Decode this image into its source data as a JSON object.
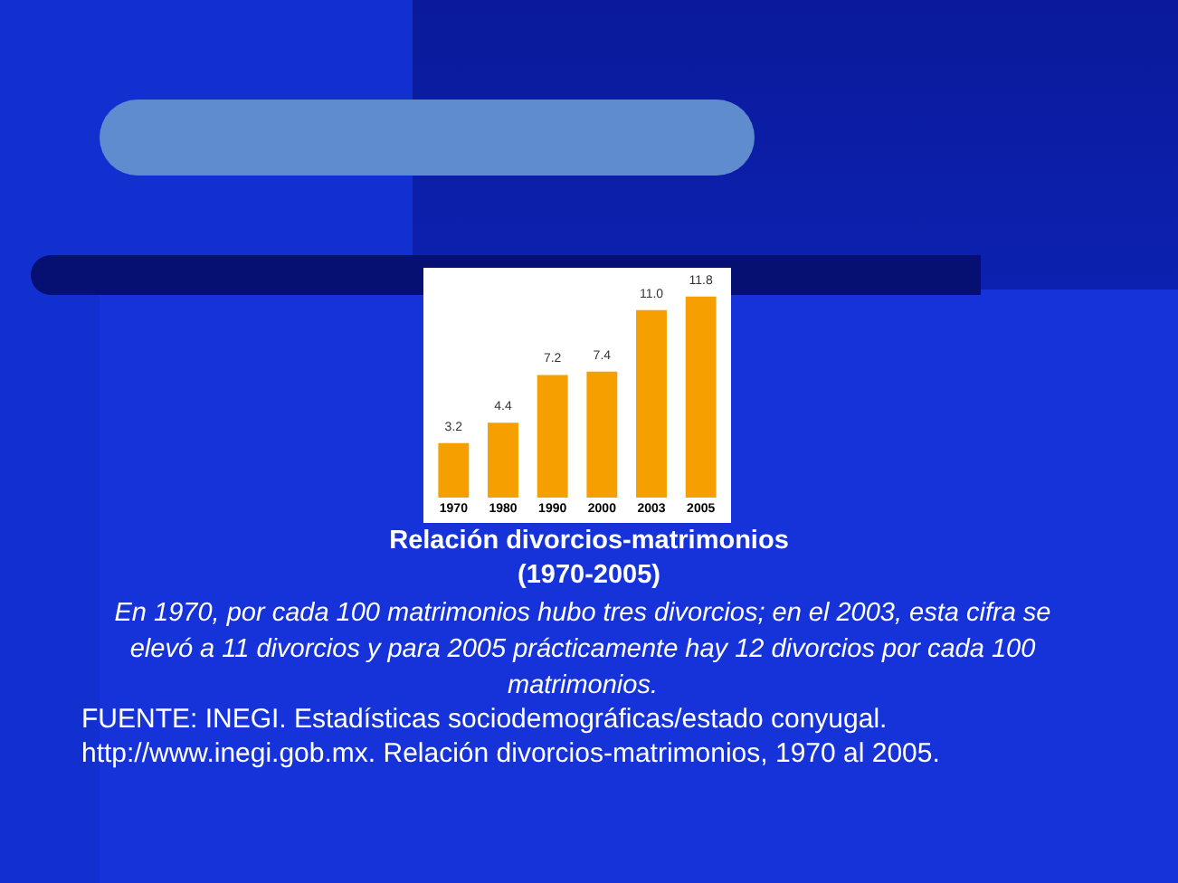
{
  "chart_data": {
    "type": "bar",
    "title": "Relación divorcios-matrimonios",
    "subtitle": "(1970-2005)",
    "categories": [
      "1970",
      "1980",
      "1990",
      "2000",
      "2003",
      "2005"
    ],
    "values": [
      3.2,
      4.4,
      7.2,
      7.4,
      11.0,
      11.8
    ],
    "color": "#f5a000",
    "value_labels": [
      "3.2",
      "4.4",
      "7.2",
      "7.4",
      "11.0",
      "11.8"
    ],
    "annotations": [
      "En 1970, por cada 100 matrimonios hubo tres divorcios; en el 2003, esta cifra se elevó a 11 divorcios y para 2005 prácticamente hay 12 divorcios por cada 100 matrimonios.",
      "FUENTE: INEGI. Estadísticas sociodemográficas/estado conyugal.",
      "http://www.inegi.gob.mx. Relación divorcios-matrimonios, 1970 al 2005."
    ]
  }
}
